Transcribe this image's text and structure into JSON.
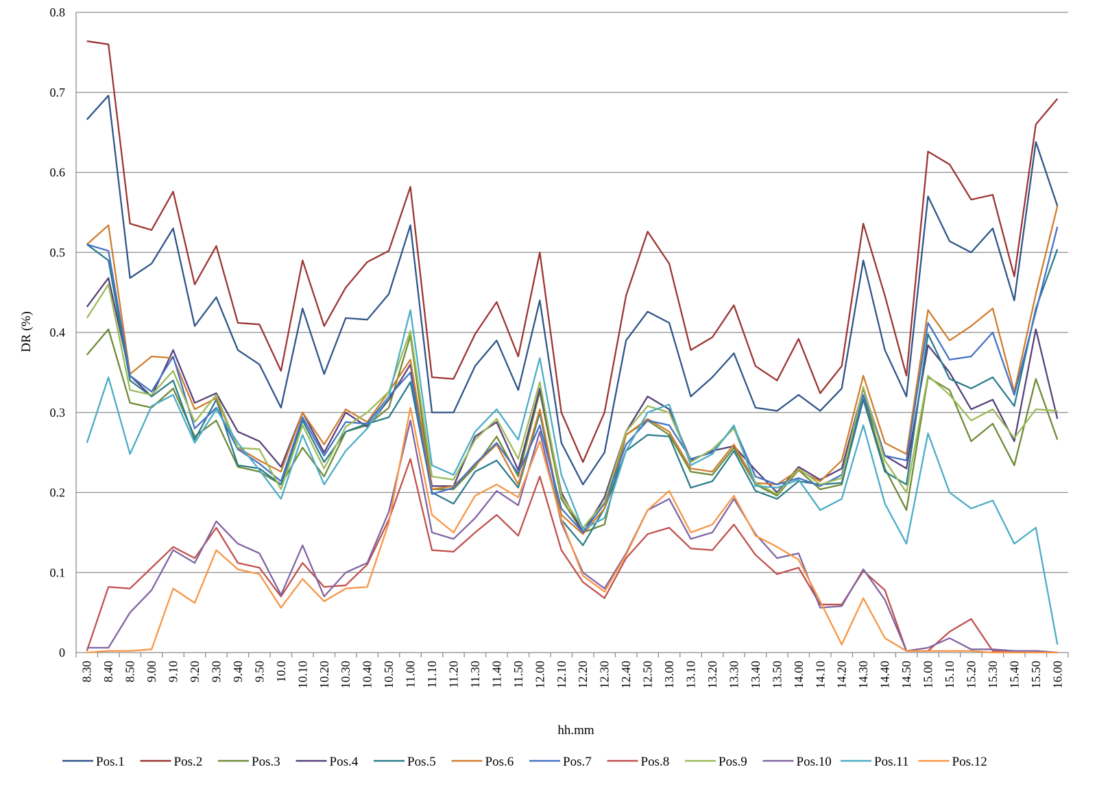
{
  "chart_data": {
    "type": "line",
    "xlabel": "hh.mm",
    "ylabel": "DR (%)",
    "ylim": [
      0,
      0.8
    ],
    "yticks": [
      "0",
      "0.1",
      "0.2",
      "0.3",
      "0.4",
      "0.5",
      "0.6",
      "0.7",
      "0.8"
    ],
    "grid": true,
    "legend_position": "bottom",
    "categories": [
      "8.30",
      "8.40",
      "8.50",
      "9.00",
      "9.10",
      "9.20",
      "9.30",
      "9.40",
      "9.50",
      "10.0",
      "10.10",
      "10.20",
      "10.30",
      "10.40",
      "10.50",
      "11.00",
      "11.10",
      "11.20",
      "11.30",
      "11.40",
      "11.50",
      "12.00",
      "12.10",
      "12.20",
      "12.30",
      "12.40",
      "12.50",
      "13.00",
      "13.10",
      "13.20",
      "13.30",
      "13.40",
      "13.50",
      "14.00",
      "14.10",
      "14.20",
      "14.30",
      "14.40",
      "14.50",
      "15.00",
      "15.10",
      "15.20",
      "15.30",
      "15.40",
      "15.50",
      "16.00"
    ],
    "series": [
      {
        "name": "Pos.1",
        "color": "#2f5589",
        "values": [
          0.666,
          0.696,
          0.468,
          0.486,
          0.53,
          0.408,
          0.444,
          0.378,
          0.36,
          0.306,
          0.43,
          0.348,
          0.418,
          0.416,
          0.448,
          0.534,
          0.3,
          0.3,
          0.358,
          0.39,
          0.328,
          0.44,
          0.262,
          0.21,
          0.25,
          0.39,
          0.426,
          0.412,
          0.32,
          0.344,
          0.374,
          0.306,
          0.302,
          0.322,
          0.302,
          0.33,
          0.49,
          0.378,
          0.32,
          0.57,
          0.514,
          0.5,
          0.53,
          0.44,
          0.638,
          0.558
        ]
      },
      {
        "name": "Pos.2",
        "color": "#9b3532",
        "values": [
          0.764,
          0.76,
          0.536,
          0.528,
          0.576,
          0.46,
          0.508,
          0.412,
          0.41,
          0.352,
          0.49,
          0.408,
          0.456,
          0.488,
          0.502,
          0.582,
          0.344,
          0.342,
          0.398,
          0.438,
          0.37,
          0.5,
          0.3,
          0.238,
          0.3,
          0.446,
          0.526,
          0.486,
          0.378,
          0.394,
          0.434,
          0.358,
          0.34,
          0.392,
          0.324,
          0.358,
          0.536,
          0.446,
          0.346,
          0.626,
          0.61,
          0.566,
          0.572,
          0.47,
          0.66,
          0.692
        ]
      },
      {
        "name": "Pos.3",
        "color": "#6e8a37",
        "values": [
          0.372,
          0.404,
          0.312,
          0.306,
          0.33,
          0.27,
          0.29,
          0.232,
          0.226,
          0.21,
          0.256,
          0.22,
          0.276,
          0.284,
          0.306,
          0.396,
          0.204,
          0.204,
          0.232,
          0.27,
          0.22,
          0.326,
          0.192,
          0.15,
          0.16,
          0.272,
          0.29,
          0.272,
          0.226,
          0.222,
          0.256,
          0.21,
          0.196,
          0.228,
          0.204,
          0.21,
          0.322,
          0.23,
          0.178,
          0.344,
          0.328,
          0.264,
          0.286,
          0.234,
          0.342,
          0.266
        ]
      },
      {
        "name": "Pos.4",
        "color": "#57407a",
        "values": [
          0.432,
          0.468,
          0.346,
          0.32,
          0.378,
          0.312,
          0.324,
          0.276,
          0.264,
          0.232,
          0.3,
          0.25,
          0.3,
          0.282,
          0.316,
          0.36,
          0.208,
          0.208,
          0.27,
          0.288,
          0.228,
          0.33,
          0.2,
          0.15,
          0.194,
          0.276,
          0.32,
          0.304,
          0.24,
          0.252,
          0.258,
          0.228,
          0.2,
          0.232,
          0.216,
          0.23,
          0.33,
          0.246,
          0.23,
          0.384,
          0.35,
          0.304,
          0.316,
          0.264,
          0.404,
          0.292
        ]
      },
      {
        "name": "Pos.5",
        "color": "#2b7c8a",
        "values": [
          0.51,
          0.49,
          0.34,
          0.32,
          0.34,
          0.266,
          0.316,
          0.234,
          0.23,
          0.21,
          0.29,
          0.238,
          0.276,
          0.286,
          0.294,
          0.338,
          0.2,
          0.186,
          0.226,
          0.24,
          0.206,
          0.3,
          0.166,
          0.134,
          0.18,
          0.252,
          0.272,
          0.27,
          0.206,
          0.214,
          0.252,
          0.202,
          0.192,
          0.214,
          0.21,
          0.212,
          0.316,
          0.226,
          0.21,
          0.398,
          0.342,
          0.33,
          0.344,
          0.308,
          0.43,
          0.504
        ]
      },
      {
        "name": "Pos.6",
        "color": "#d07d2e",
        "values": [
          0.51,
          0.534,
          0.348,
          0.37,
          0.368,
          0.304,
          0.318,
          0.256,
          0.24,
          0.226,
          0.3,
          0.26,
          0.304,
          0.288,
          0.326,
          0.366,
          0.204,
          0.208,
          0.234,
          0.26,
          0.21,
          0.304,
          0.172,
          0.148,
          0.18,
          0.272,
          0.292,
          0.276,
          0.23,
          0.226,
          0.26,
          0.212,
          0.21,
          0.228,
          0.214,
          0.24,
          0.346,
          0.262,
          0.248,
          0.428,
          0.39,
          0.408,
          0.43,
          0.326,
          0.448,
          0.558
        ]
      },
      {
        "name": "Pos.7",
        "color": "#4572c4",
        "values": [
          0.51,
          0.502,
          0.346,
          0.326,
          0.37,
          0.28,
          0.306,
          0.254,
          0.236,
          0.214,
          0.294,
          0.246,
          0.288,
          0.286,
          0.32,
          0.35,
          0.198,
          0.206,
          0.236,
          0.262,
          0.224,
          0.284,
          0.18,
          0.15,
          0.186,
          0.26,
          0.29,
          0.284,
          0.242,
          0.25,
          0.282,
          0.22,
          0.21,
          0.218,
          0.208,
          0.222,
          0.322,
          0.246,
          0.24,
          0.412,
          0.366,
          0.37,
          0.4,
          0.322,
          0.426,
          0.532
        ]
      },
      {
        "name": "Pos.8",
        "color": "#c0504d",
        "values": [
          0.002,
          0.082,
          0.08,
          0.106,
          0.132,
          0.118,
          0.156,
          0.112,
          0.106,
          0.07,
          0.112,
          0.082,
          0.084,
          0.11,
          0.166,
          0.242,
          0.128,
          0.126,
          0.15,
          0.172,
          0.146,
          0.22,
          0.128,
          0.088,
          0.068,
          0.118,
          0.148,
          0.156,
          0.13,
          0.128,
          0.16,
          0.122,
          0.098,
          0.106,
          0.06,
          0.06,
          0.102,
          0.078,
          0.002,
          0.002,
          0.026,
          0.042,
          0.002,
          0.002,
          0.002,
          0.0
        ]
      },
      {
        "name": "Pos.9",
        "color": "#9bbb59",
        "values": [
          0.418,
          0.46,
          0.328,
          0.322,
          0.352,
          0.288,
          0.322,
          0.256,
          0.254,
          0.204,
          0.284,
          0.23,
          0.282,
          0.3,
          0.326,
          0.402,
          0.22,
          0.216,
          0.266,
          0.292,
          0.242,
          0.338,
          0.196,
          0.156,
          0.188,
          0.276,
          0.308,
          0.3,
          0.238,
          0.254,
          0.28,
          0.212,
          0.198,
          0.23,
          0.21,
          0.218,
          0.332,
          0.24,
          0.2,
          0.346,
          0.322,
          0.29,
          0.304,
          0.268,
          0.304,
          0.302
        ]
      },
      {
        "name": "Pos.10",
        "color": "#8064a2",
        "values": [
          0.006,
          0.006,
          0.05,
          0.078,
          0.128,
          0.112,
          0.164,
          0.136,
          0.124,
          0.072,
          0.134,
          0.07,
          0.1,
          0.112,
          0.176,
          0.29,
          0.15,
          0.142,
          0.168,
          0.202,
          0.184,
          0.276,
          0.162,
          0.1,
          0.08,
          0.124,
          0.178,
          0.192,
          0.142,
          0.15,
          0.192,
          0.148,
          0.118,
          0.124,
          0.056,
          0.058,
          0.104,
          0.066,
          0.002,
          0.006,
          0.018,
          0.004,
          0.004,
          0.002,
          0.002,
          0.0
        ]
      },
      {
        "name": "Pos.11",
        "color": "#4bacc6",
        "values": [
          0.262,
          0.344,
          0.248,
          0.308,
          0.322,
          0.262,
          0.304,
          0.262,
          0.228,
          0.192,
          0.272,
          0.21,
          0.252,
          0.28,
          0.32,
          0.428,
          0.234,
          0.222,
          0.276,
          0.304,
          0.266,
          0.368,
          0.222,
          0.154,
          0.168,
          0.252,
          0.3,
          0.31,
          0.234,
          0.248,
          0.284,
          0.208,
          0.206,
          0.216,
          0.178,
          0.192,
          0.284,
          0.186,
          0.136,
          0.274,
          0.2,
          0.18,
          0.19,
          0.136,
          0.156,
          0.01
        ]
      },
      {
        "name": "Pos.12",
        "color": "#f79646",
        "values": [
          0.0,
          0.002,
          0.002,
          0.004,
          0.08,
          0.062,
          0.128,
          0.104,
          0.098,
          0.056,
          0.092,
          0.064,
          0.08,
          0.082,
          0.162,
          0.306,
          0.172,
          0.15,
          0.196,
          0.21,
          0.194,
          0.264,
          0.166,
          0.096,
          0.076,
          0.122,
          0.178,
          0.202,
          0.15,
          0.16,
          0.196,
          0.146,
          0.132,
          0.116,
          0.064,
          0.01,
          0.068,
          0.018,
          0.002,
          0.002,
          0.002,
          0.002,
          0.0,
          0.0,
          0.0,
          0.0
        ]
      }
    ]
  }
}
